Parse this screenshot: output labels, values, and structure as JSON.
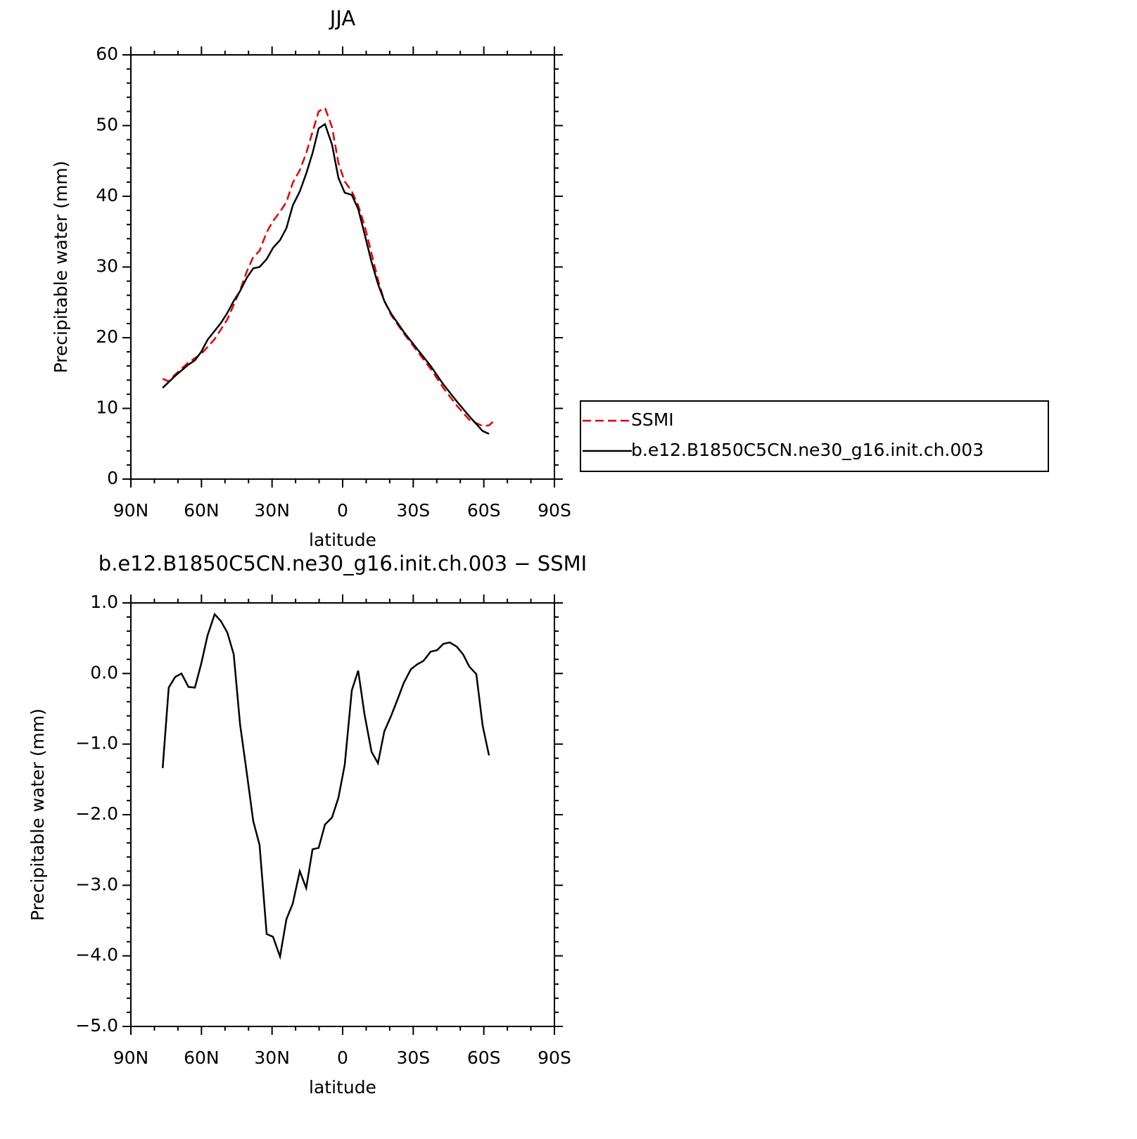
{
  "chart_data": [
    {
      "type": "line",
      "title": "JJA",
      "xlabel": "latitude",
      "ylabel": "Precipitable water (mm)",
      "xlim": [
        90,
        -90
      ],
      "xticks": [
        {
          "value": 90,
          "label": "90N"
        },
        {
          "value": 60,
          "label": "60N"
        },
        {
          "value": 30,
          "label": "30N"
        },
        0,
        {
          "value": -30,
          "label": "30S"
        },
        {
          "value": -60,
          "label": "60S"
        },
        {
          "value": -90,
          "label": "90S"
        }
      ],
      "ylim": [
        0,
        60
      ],
      "yticks": [
        0,
        10,
        20,
        30,
        40,
        50,
        60
      ],
      "legend": "right",
      "series": [
        {
          "name": "SSMI",
          "color": "#e00000",
          "dash": "dashed",
          "x": [
            76.5,
            73.9,
            71.2,
            65.5,
            60.1,
            54.4,
            49.0,
            43.6,
            40.7,
            38.0,
            35.3,
            32.3,
            29.6,
            26.6,
            23.9,
            21.2,
            18.2,
            15.5,
            12.8,
            10.2,
            7.5,
            4.5,
            1.8,
            -0.9,
            -3.9,
            -6.6,
            -9.3,
            -12.3,
            -15.0,
            -17.7,
            -20.6,
            -26.0,
            -31.7,
            -37.4,
            -42.8,
            -48.5,
            -53.8,
            -59.5,
            -62.2,
            -65.2
          ],
          "values": [
            14.2,
            13.8,
            14.8,
            16.5,
            17.7,
            19.8,
            22.6,
            26.7,
            29.4,
            31.4,
            32.3,
            34.9,
            36.5,
            37.8,
            39.2,
            41.9,
            43.7,
            46.1,
            49.1,
            52.0,
            52.5,
            49.8,
            44.7,
            42.1,
            40.7,
            38.7,
            35.9,
            31.9,
            28.2,
            25.2,
            23.2,
            20.6,
            18.1,
            15.6,
            12.9,
            10.4,
            8.4,
            7.5,
            7.6,
            8.5
          ]
        },
        {
          "name": "b.e12.B1850C5CN.ne30_g16.init.ch.003",
          "color": "#000000",
          "dash": "solid",
          "x": [
            76.5,
            71.2,
            65.5,
            62.8,
            60.1,
            57.4,
            51.7,
            49.0,
            46.3,
            43.6,
            40.7,
            38.0,
            35.3,
            32.3,
            29.6,
            26.6,
            23.9,
            21.2,
            18.2,
            15.5,
            12.8,
            10.2,
            7.5,
            4.5,
            1.8,
            -0.9,
            -3.9,
            -6.6,
            -9.3,
            -12.3,
            -15.0,
            -17.7,
            -20.6,
            -26.0,
            -31.7,
            -37.4,
            -42.8,
            -48.5,
            -53.8,
            -59.5,
            -62.2
          ],
          "values": [
            12.9,
            14.6,
            16.2,
            16.8,
            18.0,
            19.7,
            22.1,
            23.5,
            25.2,
            26.6,
            28.5,
            29.8,
            30.0,
            31.1,
            32.7,
            33.8,
            35.5,
            38.7,
            40.7,
            43.2,
            46.1,
            49.6,
            50.2,
            47.3,
            42.6,
            40.5,
            40.2,
            38.2,
            34.7,
            30.7,
            27.6,
            25.2,
            23.4,
            20.8,
            18.4,
            16.0,
            13.4,
            11.0,
            8.9,
            6.8,
            6.4
          ]
        }
      ]
    },
    {
      "type": "line",
      "title": "b.e12.B1850C5CN.ne30_g16.init.ch.003 − SSMI",
      "xlabel": "latitude",
      "ylabel": "Precipitable water (mm)",
      "xlim": [
        90,
        -90
      ],
      "xticks": [
        {
          "value": 90,
          "label": "90N"
        },
        {
          "value": 60,
          "label": "60N"
        },
        {
          "value": 30,
          "label": "30N"
        },
        0,
        {
          "value": -30,
          "label": "30S"
        },
        {
          "value": -60,
          "label": "60S"
        },
        {
          "value": -90,
          "label": "90S"
        }
      ],
      "ylim": [
        -5,
        1
      ],
      "yticks": [
        {
          "value": 1,
          "label": "1.0"
        },
        {
          "value": 0,
          "label": "0.0"
        },
        {
          "value": -1,
          "label": "−1.0"
        },
        {
          "value": -2,
          "label": "−2.0"
        },
        {
          "value": -3,
          "label": "−3.0"
        },
        {
          "value": -4,
          "label": "−4.0"
        },
        {
          "value": -5,
          "label": "−5.0"
        }
      ],
      "color": "#000000",
      "x": [
        76.5,
        73.9,
        71.2,
        68.5,
        65.5,
        62.8,
        60.1,
        57.4,
        54.4,
        51.7,
        49.0,
        46.3,
        43.6,
        40.7,
        38.0,
        35.3,
        32.3,
        29.6,
        26.6,
        23.9,
        21.2,
        18.2,
        15.5,
        12.8,
        10.2,
        7.5,
        4.5,
        1.8,
        -0.9,
        -3.9,
        -6.6,
        -9.3,
        -12.3,
        -15.0,
        -17.7,
        -20.6,
        -23.3,
        -26.0,
        -29.0,
        -31.7,
        -34.4,
        -37.4,
        -40.1,
        -42.8,
        -45.5,
        -48.5,
        -51.2,
        -53.8,
        -56.8,
        -59.5,
        -62.2
      ],
      "values": [
        -1.34,
        -0.2,
        -0.05,
        0.0,
        -0.19,
        -0.2,
        0.14,
        0.54,
        0.84,
        0.74,
        0.58,
        0.27,
        -0.72,
        -1.42,
        -2.09,
        -2.43,
        -3.69,
        -3.73,
        -4.01,
        -3.48,
        -3.26,
        -2.8,
        -3.04,
        -2.49,
        -2.47,
        -2.14,
        -2.04,
        -1.76,
        -1.29,
        -0.24,
        0.04,
        -0.58,
        -1.11,
        -1.27,
        -0.82,
        -0.6,
        -0.37,
        -0.13,
        0.06,
        0.13,
        0.18,
        0.31,
        0.33,
        0.42,
        0.44,
        0.38,
        0.27,
        0.1,
        -0.01,
        -0.74,
        -1.16
      ]
    }
  ]
}
